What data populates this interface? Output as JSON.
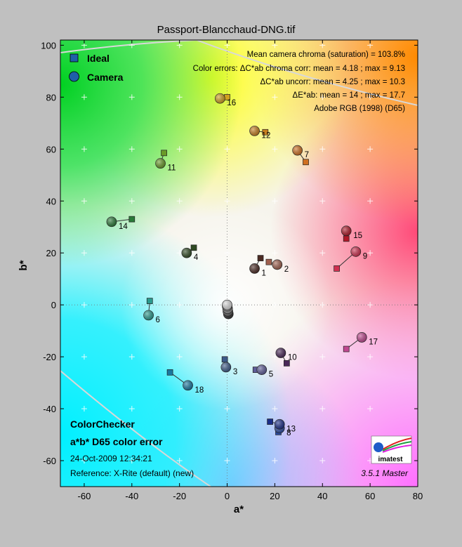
{
  "chart_data": {
    "type": "scatter",
    "title": "Passport-Blancchaud-DNG.tif",
    "xlabel": "a*",
    "ylabel": "b*",
    "xlim": [
      -70,
      80
    ],
    "ylim": [
      -70,
      102
    ],
    "xticks": [
      -60,
      -40,
      -20,
      0,
      20,
      40,
      60,
      80
    ],
    "yticks": [
      -60,
      -40,
      -20,
      0,
      20,
      40,
      60,
      80,
      100
    ],
    "grid": true,
    "legend": {
      "position": "top-left",
      "items": [
        {
          "label": "Ideal",
          "marker": "square",
          "color": "#1f5fa8"
        },
        {
          "label": "Camera",
          "marker": "circle",
          "color": "#1f5fa8"
        }
      ]
    },
    "stats": [
      "Mean camera chroma (saturation) = 103.8%",
      "Color errors:  ΔC*ab chroma corr:  mean = 4.18 ;  max = 9.13",
      "ΔC*ab uncorr:  mean = 4.25 ;  max = 10.3",
      "ΔE*ab:  mean = 14 ;  max = 17.7",
      "Adobe RGB (1998) (D65)"
    ],
    "info": {
      "heading1": "ColorChecker",
      "heading2": "a*b* D65 color error",
      "date": "24-Oct-2009 12:34:21",
      "reference": "Reference: X-Rite (default) (new)",
      "version": "3.5.1  Master",
      "logo_text": "imatest"
    },
    "patches": [
      {
        "label": "1",
        "ideal": [
          14,
          18
        ],
        "camera": [
          11.5,
          14
        ],
        "color": "#4a2a22"
      },
      {
        "label": "2",
        "ideal": [
          17.5,
          16.5
        ],
        "camera": [
          21,
          15.5
        ],
        "color": "#a0604e"
      },
      {
        "label": "3",
        "ideal": [
          -1,
          -21
        ],
        "camera": [
          -0.5,
          -24
        ],
        "color": "#3d5a88"
      },
      {
        "label": "4",
        "ideal": [
          -14,
          22
        ],
        "camera": [
          -17,
          20
        ],
        "color": "#2f4a22"
      },
      {
        "label": "5",
        "ideal": [
          12,
          -25
        ],
        "camera": [
          14.5,
          -25
        ],
        "color": "#5e5c98"
      },
      {
        "label": "6",
        "ideal": [
          -32.5,
          1.5
        ],
        "camera": [
          -33,
          -4
        ],
        "color": "#2a9a8e"
      },
      {
        "label": "7",
        "ideal": [
          33,
          55
        ],
        "camera": [
          29.5,
          59.5
        ],
        "color": "#d07020"
      },
      {
        "label": "8",
        "ideal": [
          21.5,
          -49
        ],
        "camera": [
          22,
          -47.5
        ],
        "color": "#2a4aa0"
      },
      {
        "label": "9",
        "ideal": [
          46,
          14
        ],
        "camera": [
          54,
          20.5
        ],
        "color": "#d03050"
      },
      {
        "label": "10",
        "ideal": [
          25,
          -22.5
        ],
        "camera": [
          22.5,
          -18.5
        ],
        "color": "#4a2858"
      },
      {
        "label": "11",
        "ideal": [
          -26.5,
          58.5
        ],
        "camera": [
          -28,
          54.5
        ],
        "color": "#6a9a28"
      },
      {
        "label": "12",
        "ideal": [
          16,
          66.5
        ],
        "camera": [
          11.5,
          67
        ],
        "color": "#c88020"
      },
      {
        "label": "13",
        "ideal": [
          18,
          -45
        ],
        "camera": [
          22,
          -46
        ],
        "color": "#1a2e88"
      },
      {
        "label": "14",
        "ideal": [
          -40,
          33
        ],
        "camera": [
          -48.5,
          32
        ],
        "color": "#2a7a38"
      },
      {
        "label": "15",
        "ideal": [
          50,
          25.5
        ],
        "camera": [
          50,
          28.5
        ],
        "color": "#b01828"
      },
      {
        "label": "16",
        "ideal": [
          0,
          80
        ],
        "camera": [
          -3,
          79.5
        ],
        "color": "#d0a020"
      },
      {
        "label": "17",
        "ideal": [
          50,
          -17
        ],
        "camera": [
          56.5,
          -12.5
        ],
        "color": "#c04890"
      },
      {
        "label": "18",
        "ideal": [
          -24,
          -26
        ],
        "camera": [
          -16.5,
          -31
        ],
        "color": "#1a78a0"
      },
      {
        "label": "",
        "ideal": [
          0,
          0
        ],
        "camera": [
          0.5,
          -3.5
        ],
        "color": "#303030"
      },
      {
        "label": "",
        "ideal": [
          0,
          0
        ],
        "camera": [
          0.3,
          -2.5
        ],
        "color": "#606060"
      },
      {
        "label": "",
        "ideal": [
          0,
          0
        ],
        "camera": [
          0.2,
          -1.5
        ],
        "color": "#909090"
      },
      {
        "label": "",
        "ideal": [
          0,
          0
        ],
        "camera": [
          0,
          -0.5
        ],
        "color": "#bcbcbc"
      },
      {
        "label": "",
        "ideal": [
          0,
          0
        ],
        "camera": [
          0,
          0
        ],
        "color": "#dcdcdc"
      }
    ]
  }
}
